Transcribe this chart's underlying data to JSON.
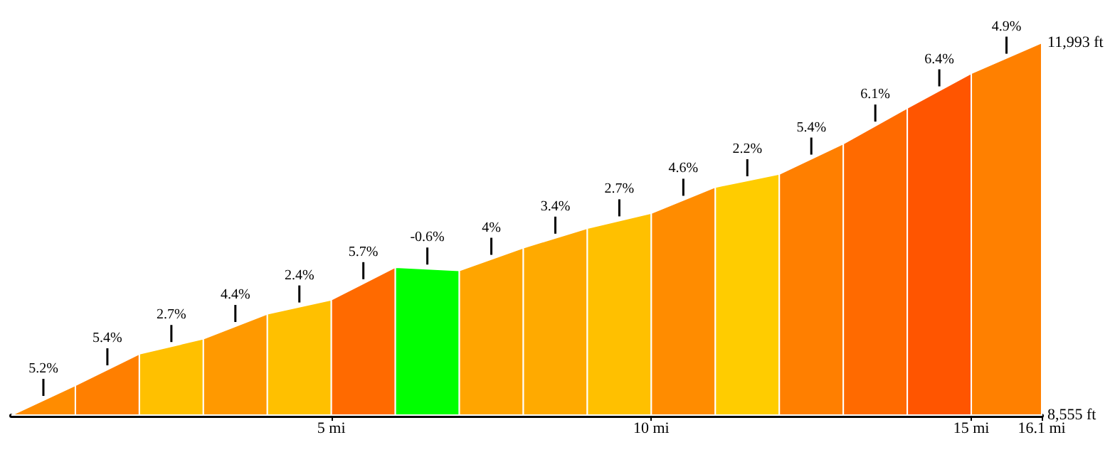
{
  "chart_data": {
    "type": "area",
    "series": [
      {
        "x": [
          0,
          1
        ],
        "values": [
          8555,
          8830
        ],
        "color": "#ff8c00"
      },
      {
        "x": [
          1,
          2
        ],
        "values": [
          8830,
          9120
        ],
        "color": "#ff7f00"
      },
      {
        "x": [
          2,
          3
        ],
        "values": [
          9120,
          9260
        ],
        "color": "#ffc000"
      },
      {
        "x": [
          3,
          4
        ],
        "values": [
          9260,
          9490
        ],
        "color": "#ff9900"
      },
      {
        "x": [
          4,
          5
        ],
        "values": [
          9490,
          9620
        ],
        "color": "#ffc000"
      },
      {
        "x": [
          5,
          6
        ],
        "values": [
          9620,
          9920
        ],
        "color": "#ff6a00"
      },
      {
        "x": [
          6,
          7
        ],
        "values": [
          9920,
          9890
        ],
        "color": "#00ff00"
      },
      {
        "x": [
          7,
          8
        ],
        "values": [
          9890,
          10100
        ],
        "color": "#ffa500"
      },
      {
        "x": [
          8,
          9
        ],
        "values": [
          10100,
          10280
        ],
        "color": "#ffaa00"
      },
      {
        "x": [
          9,
          10
        ],
        "values": [
          10280,
          10420
        ],
        "color": "#ffc000"
      },
      {
        "x": [
          10,
          11
        ],
        "values": [
          10420,
          10660
        ],
        "color": "#ff8c00"
      },
      {
        "x": [
          11,
          12
        ],
        "values": [
          10660,
          10780
        ],
        "color": "#ffcc00"
      },
      {
        "x": [
          12,
          13
        ],
        "values": [
          10780,
          11060
        ],
        "color": "#ff7f00"
      },
      {
        "x": [
          13,
          14
        ],
        "values": [
          11060,
          11390
        ],
        "color": "#ff6a00"
      },
      {
        "x": [
          14,
          15
        ],
        "values": [
          11390,
          11710
        ],
        "color": "#ff5500"
      },
      {
        "x": [
          15,
          16.1
        ],
        "values": [
          11710,
          11993
        ],
        "color": "#ff8000"
      }
    ],
    "xlim": [
      0,
      16.1
    ],
    "xticks": [
      {
        "value": 5,
        "label": "5 mi"
      },
      {
        "value": 10,
        "label": "10 mi"
      },
      {
        "value": 15,
        "label": "15 mi"
      },
      {
        "value": 16.1,
        "label": "16.1 mi"
      }
    ],
    "ylim": [
      8555,
      11993
    ],
    "yticks": [
      {
        "value": 8555,
        "label": "8,555 ft"
      },
      {
        "value": 11993,
        "label": "11,993 ft"
      }
    ],
    "grid": false,
    "annotations": [
      "5.2%",
      "5.4%",
      "2.7%",
      "4.4%",
      "2.4%",
      "5.7%",
      "-0.6%",
      "4%",
      "3.4%",
      "2.7%",
      "4.6%",
      "2.2%",
      "5.4%",
      "6.1%",
      "6.4%",
      "4.9%"
    ]
  }
}
